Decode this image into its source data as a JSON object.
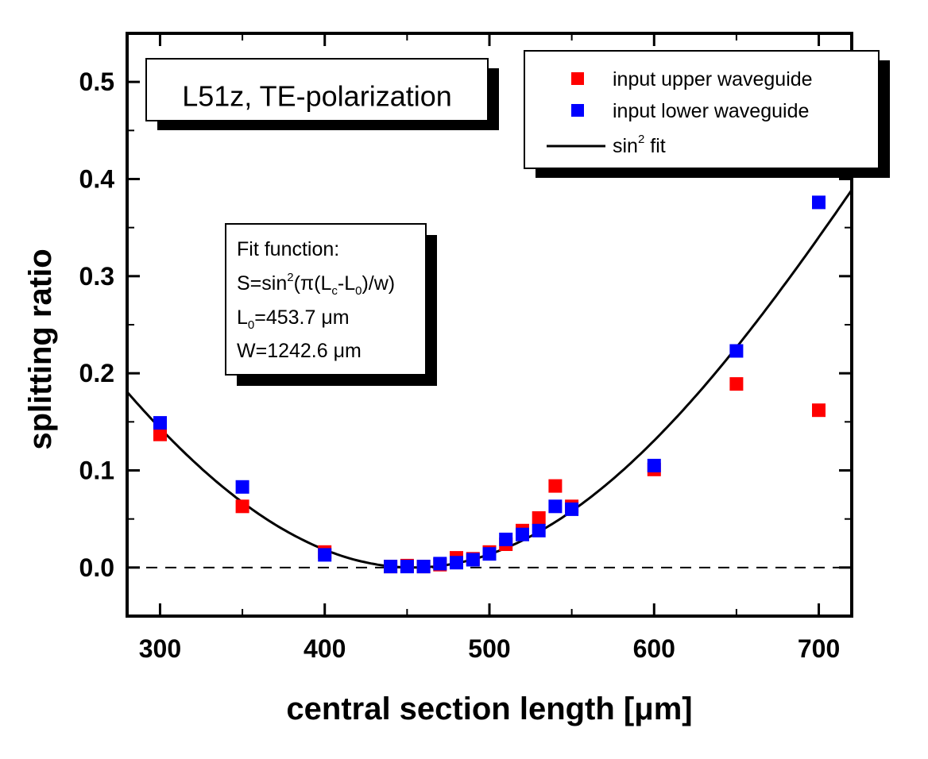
{
  "chart_data": {
    "type": "scatter",
    "title": "L51z, TE-polarization",
    "xlabel": "central section length [μm]",
    "ylabel": "splitting ratio",
    "xlim": [
      280,
      720
    ],
    "ylim": [
      -0.05,
      0.55
    ],
    "xticks": [
      300,
      400,
      500,
      600,
      700
    ],
    "xtick_labels": [
      "300",
      "400",
      "500",
      "600",
      "700"
    ],
    "yticks": [
      0.0,
      0.1,
      0.2,
      0.3,
      0.4,
      0.5
    ],
    "ytick_labels": [
      "0.0",
      "0.1",
      "0.2",
      "0.3",
      "0.4",
      "0.5"
    ],
    "reference_line": {
      "y": 0.0,
      "style": "dashed"
    },
    "series": [
      {
        "name": "input upper waveguide",
        "color": "#ff0000",
        "marker": "square",
        "x": [
          300,
          350,
          400,
          440,
          450,
          460,
          470,
          480,
          490,
          500,
          510,
          520,
          530,
          540,
          550,
          600,
          650,
          700
        ],
        "y": [
          0.137,
          0.063,
          0.016,
          0.001,
          0.002,
          0.001,
          0.003,
          0.01,
          0.009,
          0.016,
          0.024,
          0.038,
          0.051,
          0.084,
          0.063,
          0.101,
          0.189,
          0.162
        ]
      },
      {
        "name": "input lower waveguide",
        "color": "#0000ff",
        "marker": "square",
        "x": [
          300,
          350,
          400,
          440,
          450,
          460,
          470,
          480,
          490,
          500,
          510,
          520,
          530,
          540,
          550,
          600,
          650,
          700
        ],
        "y": [
          0.149,
          0.083,
          0.013,
          0.001,
          0.001,
          0.001,
          0.004,
          0.005,
          0.008,
          0.014,
          0.029,
          0.034,
          0.038,
          0.063,
          0.06,
          0.105,
          0.223,
          0.376
        ]
      }
    ],
    "fit": {
      "name": "sin² fit",
      "color": "#000000",
      "L0": 453.7,
      "w": 1242.6
    },
    "legend": {
      "position": "top-right",
      "entries": [
        "input upper waveguide",
        "input lower waveguide"
      ],
      "fit_label": "sin",
      "fit_superscript": "2",
      "fit_suffix": " fit"
    },
    "fit_box": {
      "line1": "Fit function:",
      "line2_a": "S=sin",
      "line2_sup": "2",
      "line2_b": "(π(L",
      "line2_sub1": "c",
      "line2_c": "-L",
      "line2_sub2": "0",
      "line2_d": ")/w)",
      "line3_a": "L",
      "line3_sub": "0",
      "line3_b": "=453.7 μm",
      "line4": "W=1242.6 μm"
    }
  }
}
